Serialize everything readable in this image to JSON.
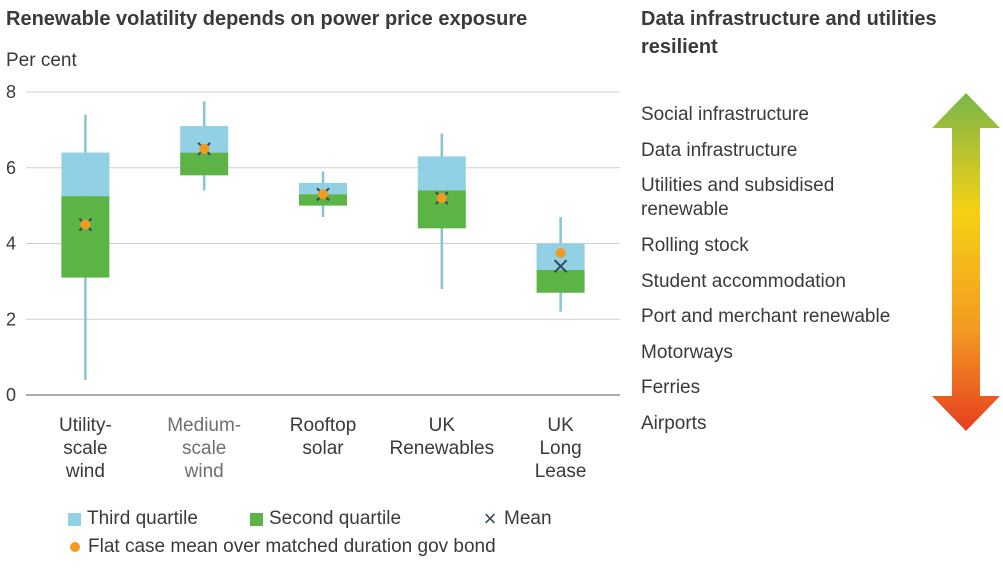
{
  "chart_data": {
    "type": "boxplot",
    "title": "Renewable volatility depends on power price exposure",
    "ylabel": "Per cent",
    "ylim": [
      0,
      8
    ],
    "yticks": [
      0,
      2,
      4,
      6,
      8
    ],
    "grid": true,
    "categories": [
      "Utility-\nscale\nwind",
      "Medium-\nscale\nwind",
      "Rooftop\nsolar",
      "UK\nRenewables",
      "UK\nLong\nLease"
    ],
    "series": [
      {
        "name": "Third quartile",
        "type": "box-upper",
        "color": "#92d0e5"
      },
      {
        "name": "Second quartile",
        "type": "box-lower",
        "color": "#5cb346"
      },
      {
        "name": "Mean",
        "type": "marker-x",
        "color": "#2b4a5a"
      },
      {
        "name": "Flat case mean over matched duration gov bond",
        "type": "marker-dot",
        "color": "#f39a21"
      }
    ],
    "boxes": [
      {
        "min": 0.4,
        "q1": 3.1,
        "median": 5.25,
        "q3": 6.4,
        "max": 7.4,
        "mean": 4.5,
        "flat": 4.5
      },
      {
        "min": 5.4,
        "q1": 5.8,
        "median": 6.4,
        "q3": 7.1,
        "max": 7.75,
        "mean": 6.5,
        "flat": 6.5
      },
      {
        "min": 4.7,
        "q1": 5.0,
        "median": 5.3,
        "q3": 5.6,
        "max": 5.9,
        "mean": 5.3,
        "flat": 5.3
      },
      {
        "min": 2.8,
        "q1": 4.4,
        "median": 5.4,
        "q3": 6.3,
        "max": 6.9,
        "mean": 5.2,
        "flat": 5.2
      },
      {
        "min": 2.2,
        "q1": 2.7,
        "median": 3.3,
        "q3": 4.0,
        "max": 4.7,
        "mean": 3.4,
        "flat": 3.75
      }
    ],
    "legend_position": "bottom"
  },
  "right_panel": {
    "title": "Data infrastructure and utilities resilient",
    "sectors": [
      "Social infrastructure",
      "Data infrastructure",
      "Utilities and subsidised\nrenewable",
      "Rolling stock",
      "Student accommodation",
      "Port and merchant renewable",
      "Motorways",
      "Ferries",
      "Airports"
    ],
    "arrow_colors": [
      "#7ab648",
      "#f5d115",
      "#f39a21",
      "#e63e20"
    ]
  }
}
